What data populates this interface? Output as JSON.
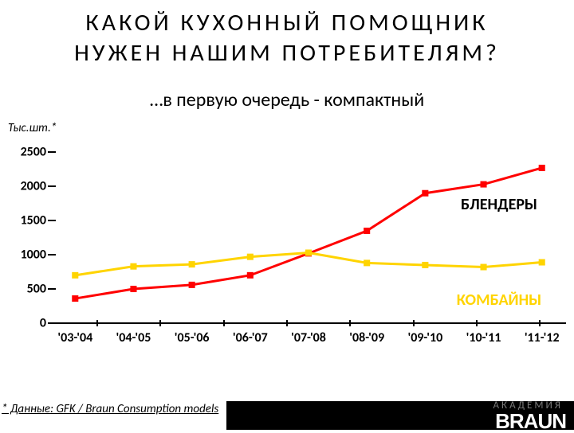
{
  "title_line1": "КАКОЙ  КУХОННЫЙ  ПОМОЩНИК",
  "title_line2": "НУЖЕН  НАШИМ  ПОТРЕБИТЕЛЯМ?",
  "subtitle": "…в первую очередь - компактный",
  "yaxis_title": "Тыс.шт.*",
  "chart": {
    "type": "line",
    "xlabels": [
      "'03-'04",
      "'04-'05",
      "'05-'06",
      "'06-'07",
      "'07-'08",
      "'08-'09",
      "'09-'10",
      "'10-'11",
      "'11-'12"
    ],
    "ylim": [
      0,
      2700
    ],
    "yticks": [
      0,
      500,
      1000,
      1500,
      2000,
      2500
    ],
    "background_color": "#ffffff",
    "axis_color": "#000000",
    "marker_size": 8,
    "line_width": 3,
    "series": [
      {
        "name": "БЛЕНДЕРЫ",
        "color": "#ff0000",
        "label_color": "#000000",
        "values": [
          360,
          500,
          560,
          700,
          1020,
          1350,
          1900,
          2030,
          2270
        ],
        "label_x_pct": 88,
        "label_y_pct": 32
      },
      {
        "name": "КОМБАЙНЫ",
        "color": "#ffd400",
        "label_color": "#ffd400",
        "values": [
          700,
          830,
          860,
          970,
          1030,
          880,
          850,
          820,
          890
        ],
        "label_x_pct": 88,
        "label_y_pct": 78
      }
    ]
  },
  "footnote": "* Данные: GFK / Braun Consumption models",
  "brand_academy": "АКАДЕМИЯ",
  "brand_name": "BRAUN"
}
